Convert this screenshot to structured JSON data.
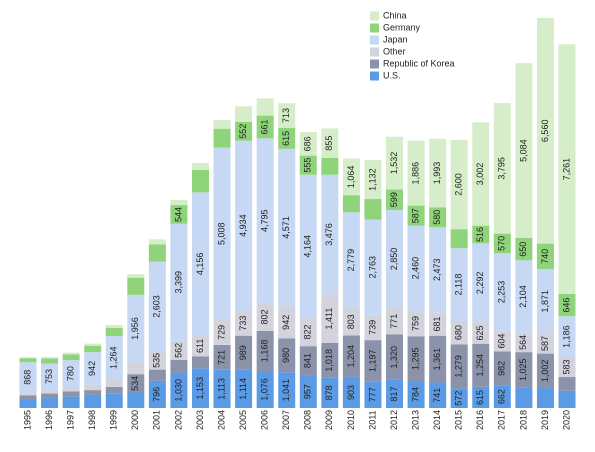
{
  "chart_data": {
    "type": "stacked-bar",
    "categories": [
      "1995",
      "1996",
      "1997",
      "1998",
      "1999",
      "2000",
      "2001",
      "2002",
      "2003",
      "2004",
      "2005",
      "2006",
      "2007",
      "2008",
      "2009",
      "2010",
      "2011",
      "2012",
      "2013",
      "2014",
      "2015",
      "2016",
      "2017",
      "2018",
      "2019",
      "2020"
    ],
    "series": [
      {
        "name": "U.S.",
        "color": "#5b9be6",
        "values": [
          260,
          290,
          330,
          380,
          430,
          450,
          796,
          1030,
          1153,
          1113,
          1114,
          1076,
          1041,
          957,
          878,
          903,
          777,
          817,
          784,
          741,
          572,
          615,
          662,
          600,
          580,
          500
        ],
        "value_labels": [
          null,
          null,
          null,
          null,
          null,
          null,
          "796",
          "1,030",
          "1,153",
          "1,113",
          "1,114",
          "1,076",
          "1,041",
          "957",
          "878",
          "903",
          "777",
          "817",
          "784",
          "741",
          "572",
          "615",
          "662",
          null,
          null,
          null
        ]
      },
      {
        "name": "Republic of Korea",
        "color": "#8a93aa",
        "values": [
          110,
          130,
          150,
          140,
          180,
          534,
          320,
          365,
          350,
          721,
          989,
          1168,
          980,
          841,
          1018,
          1204,
          1197,
          1320,
          1295,
          1361,
          1279,
          1254,
          982,
          1025,
          1002,
          400
        ],
        "value_labels": [
          null,
          null,
          null,
          null,
          null,
          "534",
          null,
          null,
          null,
          "721",
          "989",
          "1,168",
          "980",
          "841",
          "1,018",
          "1,204",
          "1,197",
          "1,320",
          "1,295",
          "1,361",
          "1,279",
          "1,254",
          "982",
          "1,025",
          "1,002",
          null
        ]
      },
      {
        "name": "Other",
        "color": "#d2d3dd",
        "values": [
          90,
          120,
          130,
          160,
          220,
          350,
          535,
          562,
          611,
          729,
          733,
          802,
          942,
          822,
          1411,
          803,
          739,
          771,
          759,
          681,
          680,
          625,
          604,
          564,
          587,
          583
        ],
        "value_labels": [
          null,
          null,
          null,
          null,
          null,
          null,
          "535",
          "562",
          "611",
          "729",
          "733",
          "802",
          "942",
          "822",
          "1,411",
          "803",
          "739",
          "771",
          "759",
          "681",
          "680",
          "625",
          "604",
          "564",
          "587",
          "583"
        ]
      },
      {
        "name": "Japan",
        "color": "#c6d8f4",
        "values": [
          868,
          753,
          780,
          942,
          1264,
          1956,
          2603,
          3399,
          4156,
          5008,
          4934,
          4795,
          4571,
          4164,
          3476,
          2779,
          2763,
          2850,
          2460,
          2473,
          2118,
          2292,
          2253,
          2104,
          1871,
          1186
        ],
        "value_labels": [
          "868",
          "753",
          "780",
          "942",
          "1,264",
          "1,956",
          "2,603",
          "3,399",
          "4,156",
          "5,008",
          "4,934",
          "4,795",
          "4,571",
          "4,164",
          "3,476",
          "2,779",
          "2,763",
          "2,850",
          "2,460",
          "2,473",
          "2,118",
          "2,292",
          "2,253",
          "2,104",
          "1,871",
          "1,186"
        ]
      },
      {
        "name": "Germany",
        "color": "#8fd47a",
        "values": [
          120,
          150,
          170,
          190,
          240,
          500,
          500,
          544,
          650,
          550,
          552,
          661,
          615,
          555,
          490,
          500,
          600,
          599,
          587,
          580,
          550,
          516,
          570,
          650,
          740,
          646
        ],
        "value_labels": [
          null,
          null,
          null,
          null,
          null,
          null,
          null,
          "544",
          null,
          null,
          "552",
          "661",
          "615",
          "555",
          null,
          null,
          null,
          "599",
          "587",
          "580",
          null,
          "516",
          "570",
          "650",
          "740",
          "646"
        ]
      },
      {
        "name": "China",
        "color": "#d5edc8",
        "values": [
          30,
          40,
          50,
          60,
          80,
          100,
          150,
          150,
          200,
          250,
          450,
          500,
          713,
          686,
          855,
          1064,
          1132,
          1532,
          1886,
          1993,
          2600,
          3002,
          3795,
          5084,
          6560,
          7261
        ],
        "value_labels": [
          null,
          null,
          null,
          null,
          null,
          null,
          null,
          null,
          null,
          null,
          null,
          null,
          "713",
          "686",
          "855",
          "1,064",
          "1,132",
          "1,532",
          "1,886",
          "1,993",
          "2,600",
          "3,002",
          "3,795",
          "5,084",
          "6,560",
          "7,261"
        ]
      }
    ]
  }
}
